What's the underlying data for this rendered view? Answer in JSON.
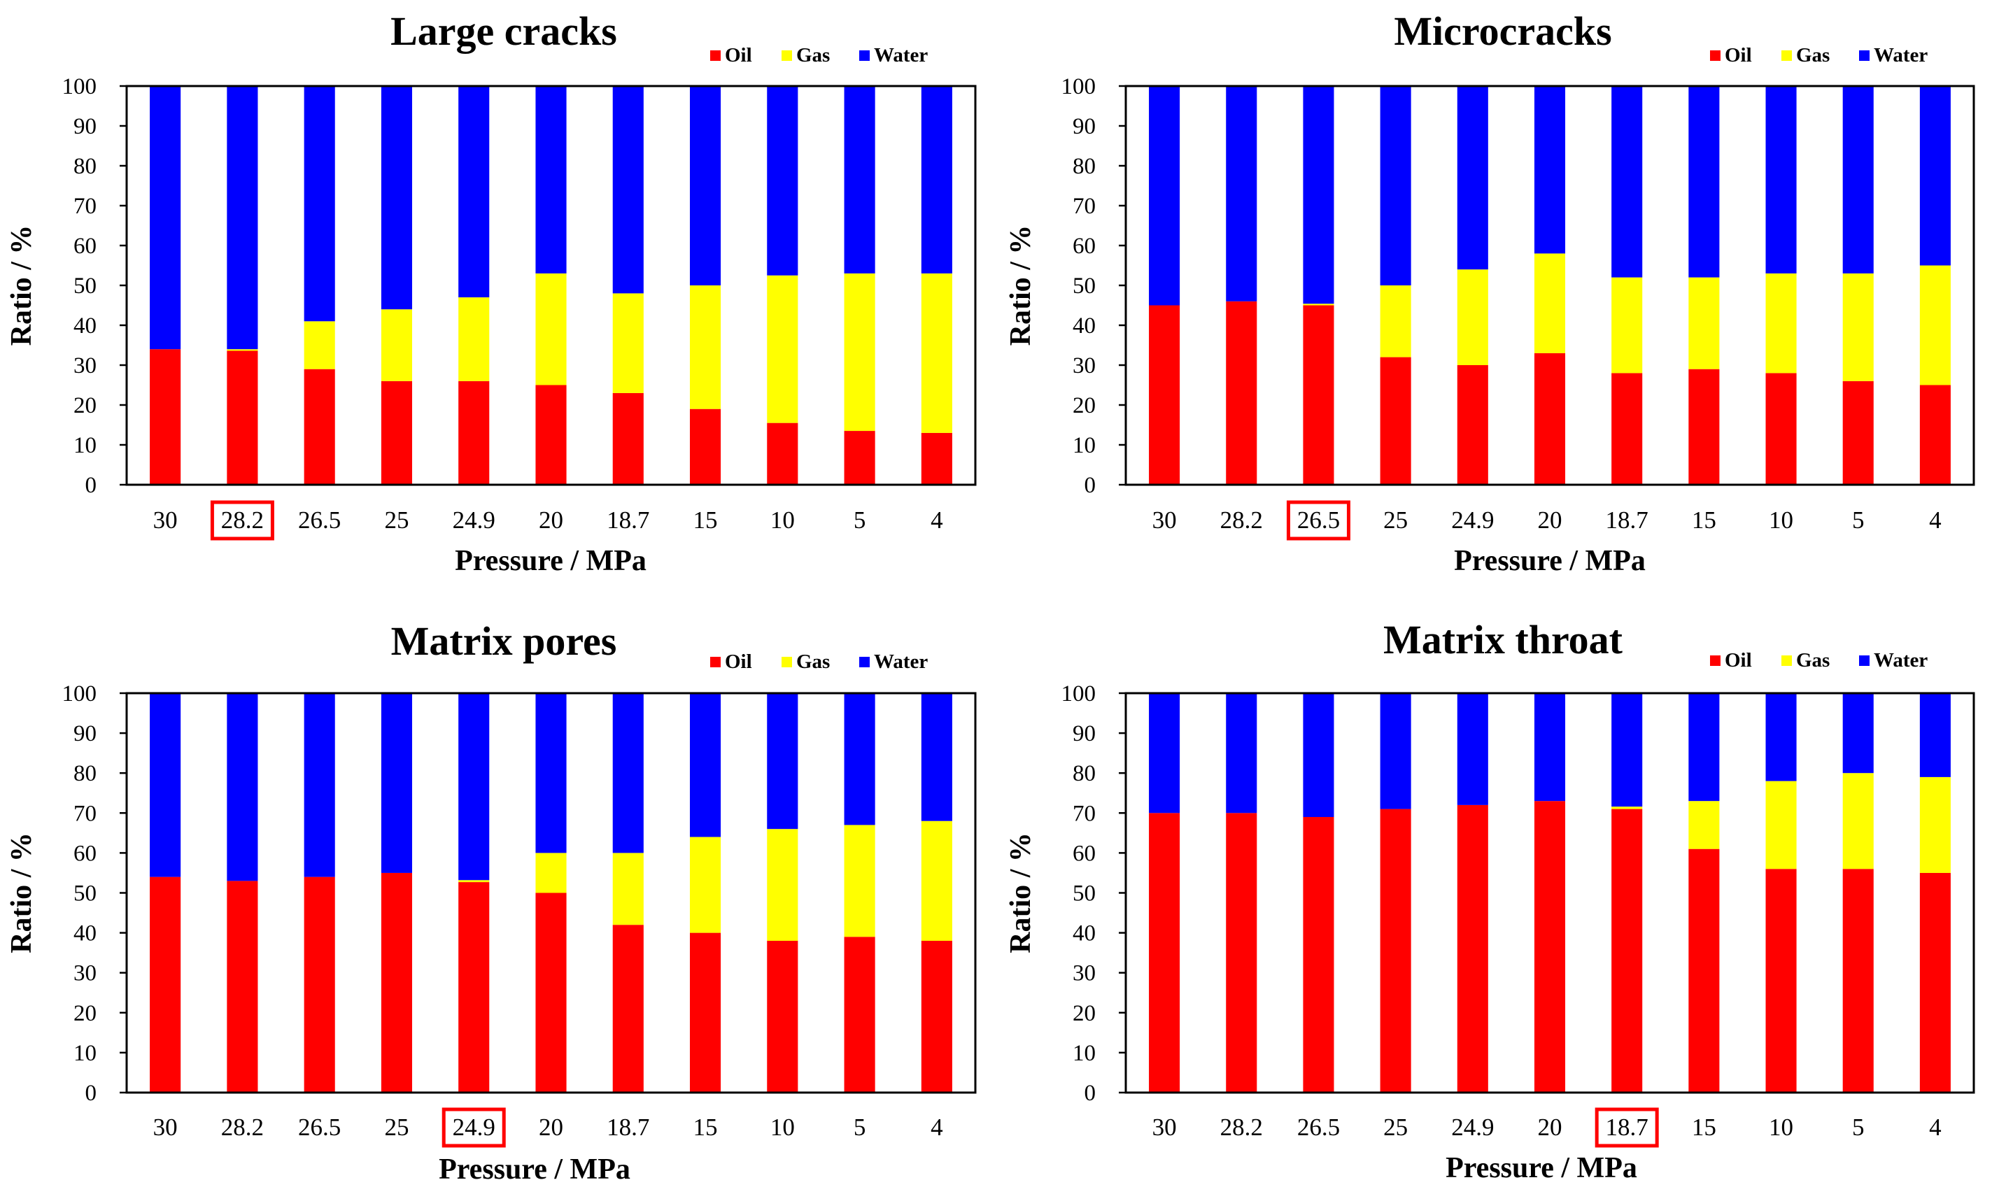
{
  "colors": {
    "oil": "#ff0000",
    "gas": "#ffff00",
    "water": "#0000ff",
    "highlight": "#ff0000"
  },
  "chart_data": [
    {
      "type": "bar",
      "stacked": true,
      "title": "Large cracks",
      "xlabel": "Pressure  / MPa",
      "ylabel": "Ratio / %",
      "ylim": [
        0,
        100
      ],
      "yticks": [
        "0",
        "10",
        "20",
        "30",
        "40",
        "50",
        "60",
        "70",
        "80",
        "90",
        "100"
      ],
      "categories": [
        "30",
        "28.2",
        "26.5",
        "25",
        "24.9",
        "20",
        "18.7",
        "15",
        "10",
        "5",
        "4"
      ],
      "highlight": "28.2",
      "legend": [
        "Oil",
        "Gas",
        "Water"
      ],
      "legend_position": "top-right",
      "series": [
        {
          "name": "Oil",
          "values": [
            34,
            33.6,
            29,
            26,
            26,
            25,
            23,
            19,
            15.5,
            13.5,
            13
          ]
        },
        {
          "name": "Gas",
          "values": [
            0,
            0.4,
            12,
            18,
            21,
            28,
            25,
            31,
            37,
            39.5,
            40
          ]
        },
        {
          "name": "Water",
          "values": [
            66,
            66,
            59,
            56,
            53,
            47,
            52,
            50,
            47.5,
            47,
            47
          ]
        }
      ]
    },
    {
      "type": "bar",
      "stacked": true,
      "title": "Microcracks",
      "xlabel": "Pressure  / MPa",
      "ylabel": "Ratio / %",
      "ylim": [
        0,
        100
      ],
      "yticks": [
        "0",
        "10",
        "20",
        "30",
        "40",
        "50",
        "60",
        "70",
        "80",
        "90",
        "100"
      ],
      "categories": [
        "30",
        "28.2",
        "26.5",
        "25",
        "24.9",
        "20",
        "18.7",
        "15",
        "10",
        "5",
        "4"
      ],
      "highlight": "26.5",
      "legend": [
        "Oil",
        "Gas",
        "Water"
      ],
      "legend_position": "top-right",
      "series": [
        {
          "name": "Oil",
          "values": [
            45,
            46,
            45,
            32,
            30,
            33,
            28,
            29,
            28,
            26,
            25
          ]
        },
        {
          "name": "Gas",
          "values": [
            0,
            0,
            0.4,
            18,
            24,
            25,
            24,
            23,
            25,
            27,
            30
          ]
        },
        {
          "name": "Water",
          "values": [
            55,
            54,
            54.6,
            50,
            46,
            42,
            48,
            48,
            47,
            47,
            45
          ]
        }
      ]
    },
    {
      "type": "bar",
      "stacked": true,
      "title": "Matrix pores",
      "xlabel": "Pressure  / MPa",
      "ylabel": "Ratio / %",
      "ylim": [
        0,
        100
      ],
      "yticks": [
        "0",
        "10",
        "20",
        "30",
        "40",
        "50",
        "60",
        "70",
        "80",
        "90",
        "100"
      ],
      "categories": [
        "30",
        "28.2",
        "26.5",
        "25",
        "24.9",
        "20",
        "18.7",
        "15",
        "10",
        "5",
        "4"
      ],
      "highlight": "24.9",
      "legend": [
        "Oil",
        "Gas",
        "Water"
      ],
      "legend_position": "top-right",
      "series": [
        {
          "name": "Oil",
          "values": [
            54,
            53,
            54,
            55,
            52.7,
            50,
            42,
            40,
            38,
            39,
            38
          ]
        },
        {
          "name": "Gas",
          "values": [
            0,
            0,
            0,
            0,
            0.5,
            10,
            18,
            24,
            28,
            28,
            30
          ]
        },
        {
          "name": "Water",
          "values": [
            46,
            47,
            46,
            45,
            46.8,
            40,
            40,
            36,
            34,
            33,
            32
          ]
        }
      ]
    },
    {
      "type": "bar",
      "stacked": true,
      "title": "Matrix throat",
      "xlabel": "Pressure  / MPa",
      "ylabel": "Ratio / %",
      "ylim": [
        0,
        100
      ],
      "yticks": [
        "0",
        "10",
        "20",
        "30",
        "40",
        "50",
        "60",
        "70",
        "80",
        "90",
        "100"
      ],
      "categories": [
        "30",
        "28.2",
        "26.5",
        "25",
        "24.9",
        "20",
        "18.7",
        "15",
        "10",
        "5",
        "4"
      ],
      "highlight": "18.7",
      "legend": [
        "Oil",
        "Gas",
        "Water"
      ],
      "legend_position": "top-right",
      "series": [
        {
          "name": "Oil",
          "values": [
            70,
            70,
            69,
            71,
            72,
            73,
            71,
            61,
            56,
            56,
            55
          ]
        },
        {
          "name": "Gas",
          "values": [
            0,
            0,
            0,
            0,
            0,
            0,
            0.6,
            12,
            22,
            24,
            24
          ]
        },
        {
          "name": "Water",
          "values": [
            30,
            30,
            31,
            29,
            28,
            27,
            28.4,
            27,
            22,
            20,
            21
          ]
        }
      ]
    }
  ]
}
